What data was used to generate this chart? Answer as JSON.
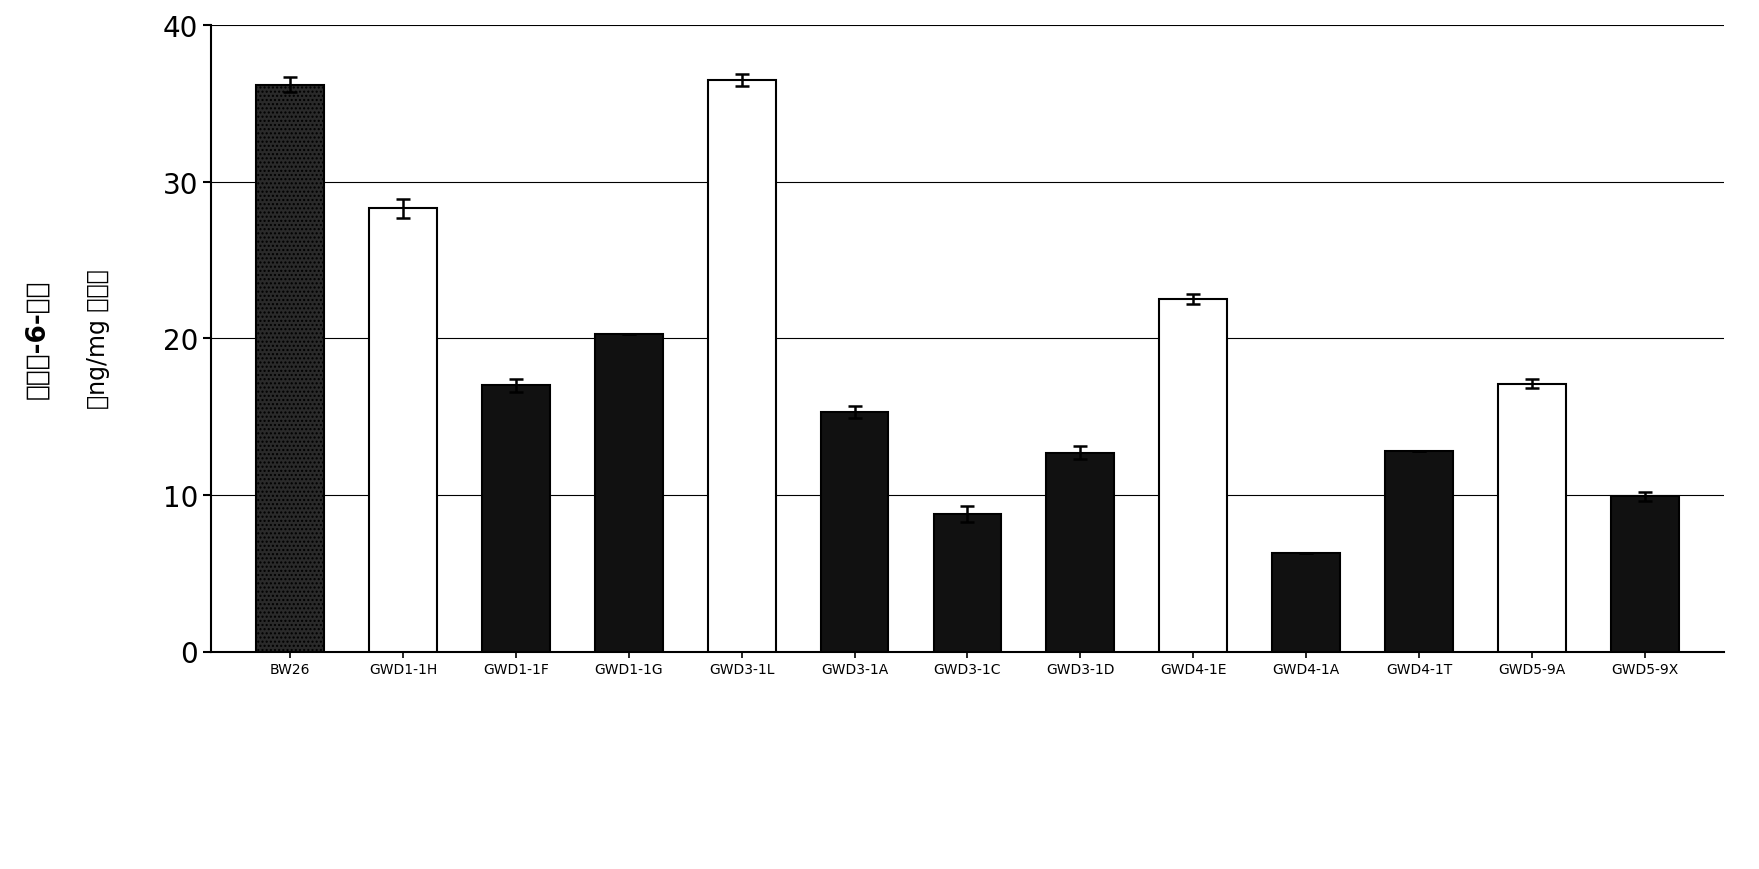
{
  "categories": [
    "BW26",
    "GWD1-1H",
    "GWD1-1F",
    "GWD1-1G",
    "GWD3-1L",
    "GWD3-1A",
    "GWD3-1C",
    "GWD3-1D",
    "GWD4-1E",
    "GWD4-1A",
    "GWD4-1T",
    "GWD5-9A",
    "GWD5-9X"
  ],
  "values": [
    36.2,
    28.3,
    17.0,
    20.3,
    36.5,
    15.3,
    8.8,
    12.7,
    22.5,
    6.3,
    12.8,
    17.1,
    9.9
  ],
  "errors": [
    0.5,
    0.6,
    0.4,
    0.0,
    0.4,
    0.4,
    0.5,
    0.4,
    0.3,
    0.0,
    0.0,
    0.3,
    0.3
  ],
  "bar_colors": [
    "#404040",
    "#ffffff",
    "#111111",
    "#111111",
    "#ffffff",
    "#111111",
    "#111111",
    "#111111",
    "#ffffff",
    "#111111",
    "#111111",
    "#ffffff",
    "#111111"
  ],
  "edge_colors": [
    "#000000",
    "#000000",
    "#000000",
    "#000000",
    "#000000",
    "#000000",
    "#000000",
    "#000000",
    "#000000",
    "#000000",
    "#000000",
    "#000000",
    "#000000"
  ],
  "ylabel_chinese": "葡萄糖-6-磷酸",
  "ylabel_unit": "（ng/mg 淠粉）",
  "ylim": [
    0,
    40
  ],
  "yticks": [
    0,
    10,
    20,
    30,
    40
  ],
  "bar_width": 0.6,
  "figure_width": 17.59,
  "figure_height": 8.7,
  "dpi": 100,
  "bg_color": "#ffffff",
  "grid_color": "#000000",
  "grid_linewidth": 0.8
}
